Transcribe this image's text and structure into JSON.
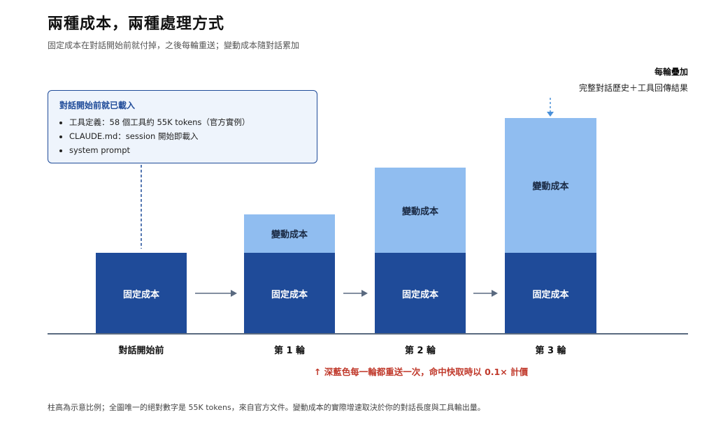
{
  "header": {
    "title": "兩種成本，兩種處理方式",
    "subtitle": "固定成本在對話開始前就付掉，之後每輪重送；變動成本隨對話累加"
  },
  "callout": {
    "title": "對話開始前就已載入",
    "items": [
      "工具定義：58 個工具約 55K tokens（官方實例）",
      "CLAUDE.md：session 開始即載入",
      "system prompt"
    ]
  },
  "accumulation_note": {
    "title": "每輪疊加",
    "subtitle": "完整對話歷史＋工具回傳結果"
  },
  "blocks": {
    "fixed_label": "固定成本",
    "variable_label": "變動成本"
  },
  "columns": [
    {
      "label": "對話開始前"
    },
    {
      "label": "第 1 輪"
    },
    {
      "label": "第 2 輪"
    },
    {
      "label": "第 3 輪"
    }
  ],
  "resend_note": "↑ 深藍色每一輪都重送一次，命中快取時以 0.1× 計價",
  "footnote": "柱高為示意比例；全圖唯一的絕對數字是 55K tokens，來自官方文件。變動成本的實際增速取決於你的對話長度與工具輸出量。",
  "colors": {
    "fixed": "#1f4b99",
    "variable": "#90bdf0",
    "callout_border": "#1f4b99",
    "callout_bg": "#eef4fc",
    "note_red": "#c0392b"
  }
}
